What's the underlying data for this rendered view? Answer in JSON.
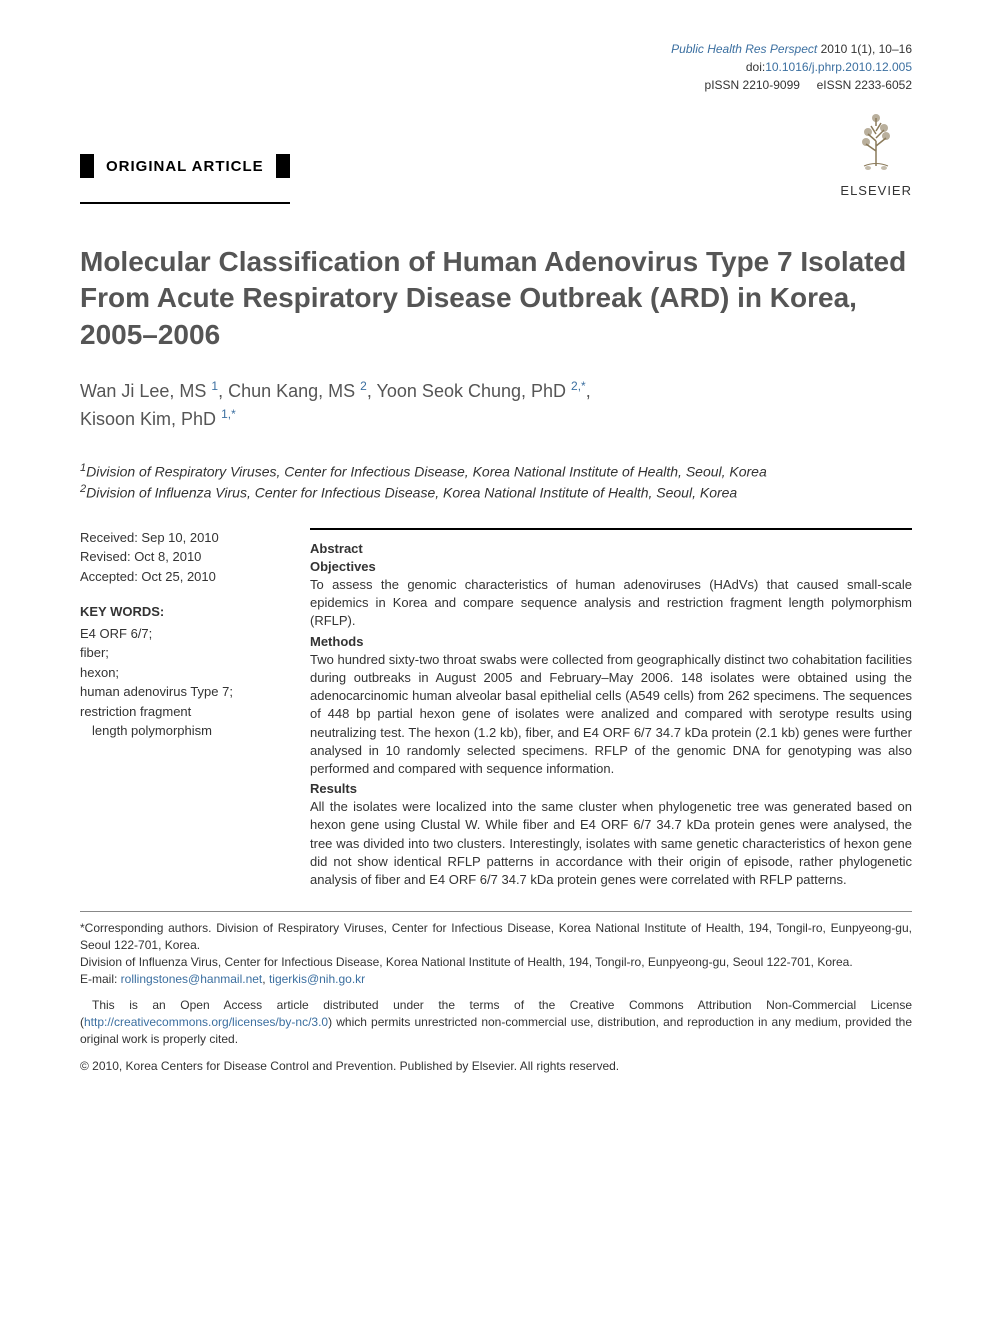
{
  "meta": {
    "journal_name": "Public Health Res Perspect",
    "year_vol": "2010 1(1), 10–16",
    "doi_label": "doi:",
    "doi": "10.1016/j.phrp.2010.12.005",
    "pissn_label": "pISSN 2210-9099",
    "eissn_label": "eISSN 2233-6052",
    "publisher": "ELSEVIER"
  },
  "article_type": "ORIGINAL ARTICLE",
  "title": "Molecular Classification of Human Adenovirus Type 7 Isolated From Acute Respiratory Disease Outbreak (ARD) in Korea, 2005–2006",
  "authors_html": [
    {
      "name": "Wan Ji Lee, MS",
      "sup": "1"
    },
    {
      "name": "Chun Kang, MS",
      "sup": "2"
    },
    {
      "name": "Yoon Seok Chung, PhD",
      "sup": "2,*"
    },
    {
      "name": "Kisoon Kim, PhD",
      "sup": "1,*"
    }
  ],
  "affiliations": [
    {
      "sup": "1",
      "text": "Division of Respiratory Viruses, Center for Infectious Disease, Korea National Institute of Health, Seoul, Korea"
    },
    {
      "sup": "2",
      "text": "Division of Influenza Virus, Center for Infectious Disease, Korea National Institute of Health, Seoul, Korea"
    }
  ],
  "dates": {
    "received": "Received: Sep 10, 2010",
    "revised": "Revised: Oct 8, 2010",
    "accepted": "Accepted: Oct 25, 2010"
  },
  "keywords_heading": "KEY WORDS:",
  "keywords": [
    "E4 ORF 6/7;",
    "fiber;",
    "hexon;",
    "human adenovirus Type 7;",
    "restriction fragment",
    "length polymorphism"
  ],
  "abstract": {
    "heading": "Abstract",
    "sections": [
      {
        "heading": "Objectives",
        "body": "To assess the genomic characteristics of human adenoviruses (HAdVs) that caused small-scale epidemics in Korea and compare sequence analysis and restriction fragment length polymorphism (RFLP)."
      },
      {
        "heading": "Methods",
        "body": "Two hundred sixty-two throat swabs were collected from geographically distinct two cohabitation facilities during outbreaks in August 2005 and February–May 2006. 148 isolates were obtained using the adenocarcinomic human alveolar basal epithelial cells (A549 cells) from 262 specimens. The sequences of 448 bp partial hexon gene of isolates were analized and compared with serotype results using neutralizing test. The hexon (1.2 kb), fiber, and E4 ORF 6/7 34.7 kDa protein (2.1 kb) genes were further analysed in 10 randomly selected specimens. RFLP of the genomic DNA for genotyping was also performed and compared with sequence information."
      },
      {
        "heading": "Results",
        "body": "All the isolates were localized into the same cluster when phylogenetic tree was generated based on hexon gene using Clustal W. While fiber and E4 ORF 6/7 34.7 kDa protein genes were analysed, the tree was divided into two clusters. Interestingly, isolates with same genetic characteristics of hexon gene did not show identical RFLP patterns in accordance with their origin of episode, rather phylogenetic analysis of fiber and E4 ORF 6/7 34.7 kDa protein genes were correlated with RFLP patterns."
      }
    ]
  },
  "footer": {
    "corresponding": "*Corresponding authors. Division of Respiratory Viruses, Center for Infectious Disease, Korea National Institute of Health, 194, Tongil-ro, Eunpyeong-gu, Seoul 122-701, Korea.",
    "corresponding2": "Division of Influenza Virus, Center for Infectious Disease, Korea National Institute of Health, 194, Tongil-ro, Eunpyeong-gu, Seoul 122-701, Korea.",
    "email_label": "E-mail: ",
    "email1": "rollingstones@hanmail.net",
    "email_sep": ", ",
    "email2": "tigerkis@nih.go.kr",
    "license_pre": "This is an Open Access article distributed under the terms of the Creative Commons Attribution Non-Commercial License (",
    "license_url": "http://creativecommons.org/licenses/by-nc/3.0",
    "license_post": ") which permits unrestricted non-commercial use, distribution, and reproduction in any medium, provided the original work is properly cited.",
    "copyright": "© 2010, Korea Centers for Disease Control and Prevention. Published by Elsevier. All rights reserved."
  },
  "colors": {
    "link": "#3b6fa0",
    "title": "#555555",
    "text": "#333333"
  }
}
